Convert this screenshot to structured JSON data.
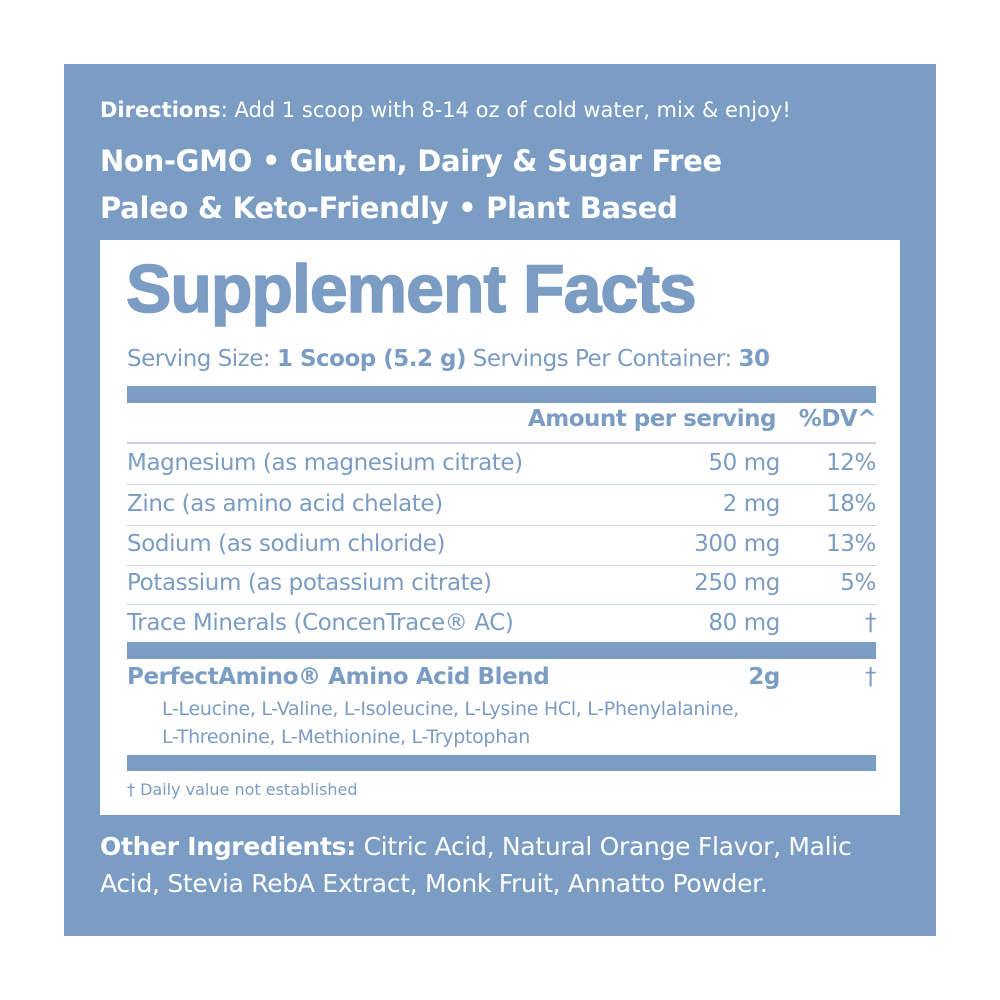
{
  "directions": {
    "label": "Directions",
    "text": ": Add 1 scoop with 8-14 oz of cold water, mix & enjoy!"
  },
  "claims": [
    "Non-GMO • Gluten, Dairy & Sugar Free",
    "Paleo & Keto-Friendly • Plant Based"
  ],
  "facts": {
    "title": "Supplement Facts",
    "serving_size_label": "Serving Size: ",
    "serving_size_value": "1 Scoop (5.2 g)",
    "servings_label": " Servings Per Container: ",
    "servings_value": "30",
    "header_amount": "Amount per serving",
    "header_dv": "%DV^",
    "rows": [
      {
        "name": "Magnesium (as magnesium citrate)",
        "amount": "50 mg",
        "dv": "12%"
      },
      {
        "name": "Zinc (as amino acid chelate)",
        "amount": "2 mg",
        "dv": "18%"
      },
      {
        "name": "Sodium (as sodium chloride)",
        "amount": "300 mg",
        "dv": "13%"
      },
      {
        "name": "Potassium (as potassium citrate)",
        "amount": "250 mg",
        "dv": "5%"
      },
      {
        "name": "Trace Minerals (ConcenTrace® AC)",
        "amount": "80 mg",
        "dv": "†"
      }
    ],
    "blend": {
      "name": "PerfectAmino® Amino Acid Blend",
      "amount": "2g",
      "dv": "†",
      "ingredients": [
        "L-Leucine, L-Valine, L-Isoleucine, L-Lysine HCl, L-Phenylalanine,",
        "L-Threonine, L-Methionine, L-Tryptophan"
      ]
    },
    "footnote": "† Daily value not established"
  },
  "other": {
    "label": "Other Ingredients:",
    "lines": [
      " Citric Acid, Natural Orange Flavor, Malic",
      "Acid, Stevia RebA Extract, Monk Fruit, Annatto Powder."
    ]
  },
  "colors": {
    "brand_blue": "#7b9cc3",
    "panel": "#ffffff"
  }
}
